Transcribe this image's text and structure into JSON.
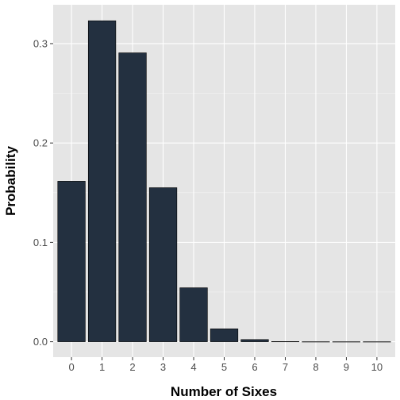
{
  "chart_data": {
    "type": "bar",
    "title": "",
    "xlabel": "Number of Sixes",
    "ylabel": "Probability",
    "categories": [
      "0",
      "1",
      "2",
      "3",
      "4",
      "5",
      "6",
      "7",
      "8",
      "9",
      "10"
    ],
    "values": [
      0.1615,
      0.323,
      0.2907,
      0.155,
      0.0543,
      0.013,
      0.0022,
      0.0002,
      2e-05,
      1e-06,
      2e-08
    ],
    "ylim": [
      -0.0155,
      0.3391
    ],
    "yticks": [
      0.0,
      0.1,
      0.2,
      0.3
    ],
    "ytick_labels": [
      "0.0",
      "0.1",
      "0.2",
      "0.3"
    ],
    "grid": true,
    "legend": "none",
    "colors": {
      "bar_fill": "#233040",
      "bar_stroke": "#000000",
      "panel_bg": "#e5e5e5",
      "grid_major": "#ffffff",
      "grid_minor": "#f2f2f2"
    }
  }
}
